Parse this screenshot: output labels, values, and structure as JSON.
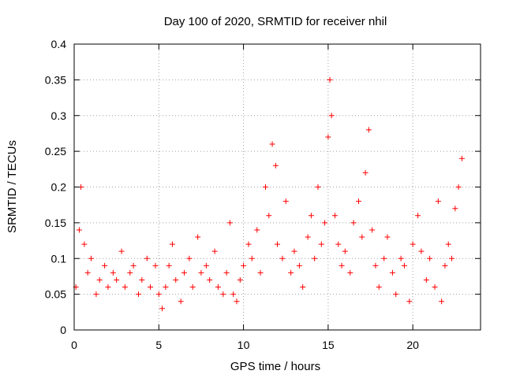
{
  "chart_data": {
    "type": "scatter",
    "title": "Day 100 of 2020, SRMTID for receiver nhil",
    "xlabel": "GPS time / hours",
    "ylabel": "SRMTID / TECUs",
    "xlim": [
      0,
      24
    ],
    "ylim": [
      0,
      0.4
    ],
    "x_ticks": [
      0,
      5,
      10,
      15,
      20
    ],
    "y_ticks": [
      0,
      0.05,
      0.1,
      0.15,
      0.2,
      0.25,
      0.3,
      0.35,
      0.4
    ],
    "x_tick_labels": [
      "0",
      "5",
      "10",
      "15",
      "20"
    ],
    "y_tick_labels": [
      "0",
      "0.05",
      "0.1",
      "0.15",
      "0.2",
      "0.25",
      "0.3",
      "0.35",
      "0.4"
    ],
    "grid": true,
    "marker": "plus",
    "color": "#ff0000",
    "series": [
      {
        "name": "SRMTID",
        "x": [
          0.1,
          0.3,
          0.4,
          0.6,
          0.8,
          1.0,
          1.3,
          1.5,
          1.8,
          2.0,
          2.3,
          2.5,
          2.8,
          3.0,
          3.3,
          3.5,
          3.8,
          4.0,
          4.3,
          4.5,
          4.8,
          5.0,
          5.2,
          5.4,
          5.6,
          5.8,
          6.0,
          6.3,
          6.5,
          6.8,
          7.0,
          7.3,
          7.5,
          7.8,
          8.0,
          8.3,
          8.5,
          8.8,
          9.0,
          9.2,
          9.4,
          9.6,
          9.8,
          10.0,
          10.3,
          10.5,
          10.8,
          11.0,
          11.3,
          11.5,
          11.7,
          11.9,
          12.0,
          12.3,
          12.5,
          12.8,
          13.0,
          13.3,
          13.5,
          13.8,
          14.0,
          14.2,
          14.4,
          14.6,
          14.8,
          15.0,
          15.1,
          15.2,
          15.4,
          15.6,
          15.8,
          16.0,
          16.3,
          16.5,
          16.8,
          17.0,
          17.2,
          17.4,
          17.6,
          17.8,
          18.0,
          18.3,
          18.5,
          18.8,
          19.0,
          19.3,
          19.5,
          19.8,
          20.0,
          20.3,
          20.5,
          20.8,
          21.0,
          21.3,
          21.5,
          21.7,
          21.9,
          22.1,
          22.3,
          22.5,
          22.7,
          22.9
        ],
        "y": [
          0.06,
          0.14,
          0.2,
          0.12,
          0.08,
          0.1,
          0.05,
          0.07,
          0.09,
          0.06,
          0.08,
          0.07,
          0.11,
          0.06,
          0.08,
          0.09,
          0.05,
          0.07,
          0.1,
          0.06,
          0.09,
          0.05,
          0.03,
          0.06,
          0.09,
          0.12,
          0.07,
          0.04,
          0.08,
          0.1,
          0.06,
          0.13,
          0.08,
          0.09,
          0.07,
          0.11,
          0.06,
          0.05,
          0.08,
          0.15,
          0.05,
          0.04,
          0.07,
          0.09,
          0.12,
          0.1,
          0.14,
          0.08,
          0.2,
          0.16,
          0.26,
          0.23,
          0.12,
          0.1,
          0.18,
          0.08,
          0.11,
          0.09,
          0.06,
          0.13,
          0.16,
          0.1,
          0.2,
          0.12,
          0.15,
          0.27,
          0.35,
          0.3,
          0.16,
          0.12,
          0.09,
          0.11,
          0.08,
          0.15,
          0.18,
          0.13,
          0.22,
          0.28,
          0.14,
          0.09,
          0.06,
          0.1,
          0.13,
          0.08,
          0.05,
          0.1,
          0.09,
          0.04,
          0.12,
          0.16,
          0.11,
          0.07,
          0.1,
          0.06,
          0.18,
          0.04,
          0.09,
          0.12,
          0.1,
          0.17,
          0.2,
          0.24
        ]
      }
    ]
  }
}
